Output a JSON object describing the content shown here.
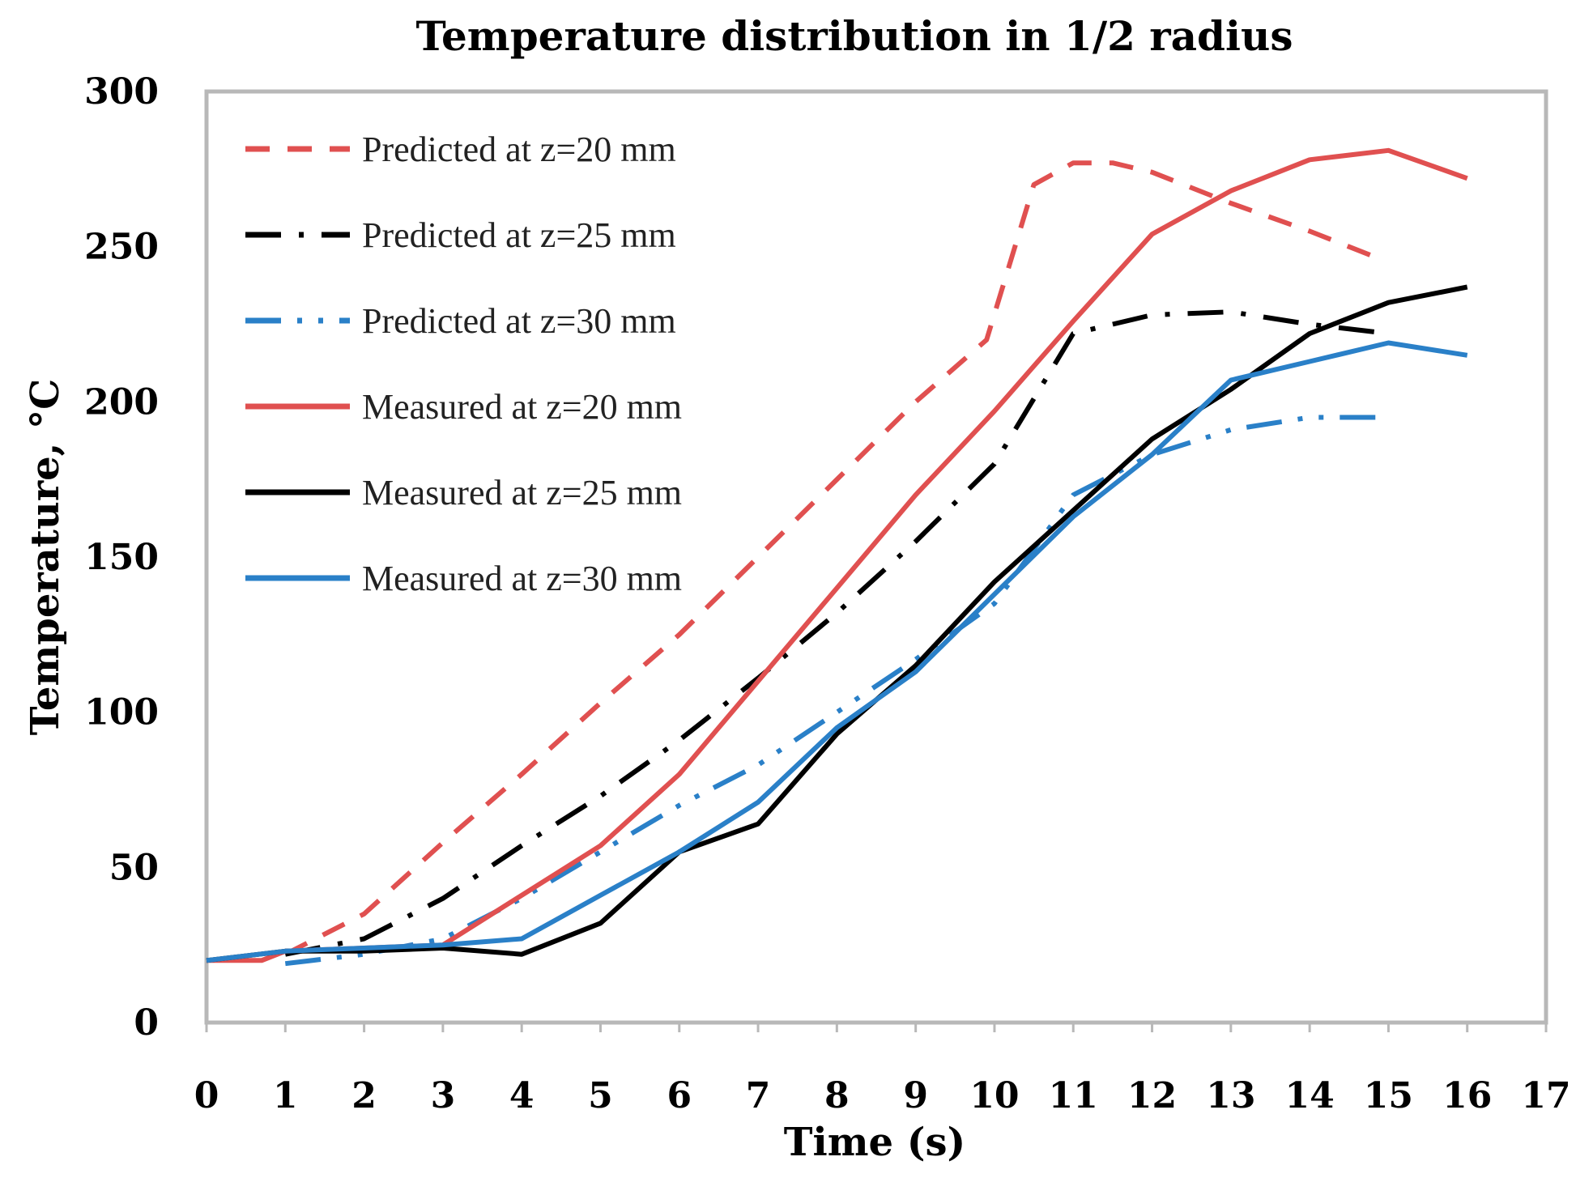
{
  "chart_data": {
    "type": "line",
    "title": "Temperature distribution  in 1/2 radius",
    "xlabel": "Time (s)",
    "ylabel": "Temperature, °C",
    "xlim": [
      0,
      17
    ],
    "ylim": [
      0,
      300
    ],
    "xticks": [
      0,
      1,
      2,
      3,
      4,
      5,
      6,
      7,
      8,
      9,
      10,
      11,
      12,
      13,
      14,
      15,
      16,
      17
    ],
    "yticks": [
      0,
      50,
      100,
      150,
      200,
      250,
      300
    ],
    "grid": false,
    "legend_position": "top-left",
    "series": [
      {
        "name": "Predicted at z=20 mm",
        "color": "#e05050",
        "style": "dash",
        "x": [
          1,
          2,
          3,
          4,
          5,
          6,
          7,
          8,
          9,
          9.9,
          10.5,
          11,
          11.5,
          12,
          13,
          14,
          14.8
        ],
        "y": [
          22,
          35,
          58,
          80,
          103,
          125,
          150,
          175,
          200,
          220,
          270,
          277,
          277,
          274,
          264,
          255,
          247
        ]
      },
      {
        "name": "Predicted at z=25 mm",
        "color": "#000000",
        "style": "dash-dot",
        "x": [
          1,
          2,
          3,
          4,
          5,
          6,
          7,
          8,
          9,
          10,
          11,
          12,
          13,
          14,
          15
        ],
        "y": [
          22,
          27,
          40,
          57,
          73,
          91,
          111,
          132,
          155,
          180,
          222,
          228,
          229,
          225,
          222
        ]
      },
      {
        "name": "Predicted at z=30 mm",
        "color": "#2a80c8",
        "style": "dash-dot-dot",
        "x": [
          1,
          2,
          3,
          4,
          5,
          6,
          7,
          8,
          9,
          10,
          11,
          12,
          13,
          14,
          15
        ],
        "y": [
          19,
          22,
          27,
          40,
          55,
          70,
          83,
          100,
          117,
          135,
          170,
          183,
          191,
          195,
          195
        ]
      },
      {
        "name": "Measured at z=20 mm",
        "color": "#e05050",
        "style": "solid",
        "x": [
          0,
          0.7,
          1,
          2,
          3,
          4,
          5,
          6,
          7,
          8,
          9,
          10,
          11,
          12,
          13,
          14,
          15,
          16
        ],
        "y": [
          20,
          20,
          23,
          24,
          25,
          41,
          57,
          80,
          110,
          140,
          170,
          197,
          226,
          254,
          268,
          278,
          281,
          272
        ]
      },
      {
        "name": "Measured at z=25 mm",
        "color": "#000000",
        "style": "solid",
        "x": [
          0,
          1,
          2,
          3,
          4,
          5,
          6,
          7,
          8,
          9,
          10,
          11,
          12,
          13,
          14,
          15,
          16
        ],
        "y": [
          20,
          23,
          23,
          24,
          22,
          32,
          55,
          64,
          93,
          115,
          142,
          165,
          188,
          204,
          222,
          232,
          237
        ]
      },
      {
        "name": "Measured at z=30 mm",
        "color": "#2a80c8",
        "style": "solid",
        "x": [
          0,
          1,
          2,
          3,
          4,
          5,
          6,
          7,
          8,
          9,
          10,
          11,
          12,
          13,
          14,
          15,
          16
        ],
        "y": [
          20,
          23,
          24,
          25,
          27,
          41,
          55,
          71,
          95,
          113,
          138,
          163,
          183,
          207,
          213,
          219,
          215
        ]
      }
    ]
  }
}
